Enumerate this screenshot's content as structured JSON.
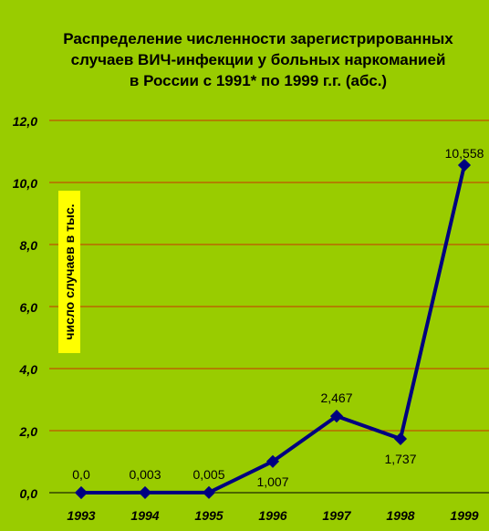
{
  "chart_data": {
    "type": "line",
    "title_lines": [
      "Распределение численности зарегистрированных",
      "случаев ВИЧ-инфекции у больных наркоманией",
      "в России с 1991* по 1999 г.г. (абс.)"
    ],
    "ylabel": "число случаев в тыс.",
    "categories": [
      "1993",
      "1994",
      "1995",
      "1996",
      "1997",
      "1998",
      "1999"
    ],
    "values": [
      0.0,
      0.003,
      0.005,
      1.007,
      2.467,
      1.737,
      10.558
    ],
    "data_labels": [
      "0,0",
      "0,003",
      "0,005",
      "1,007",
      "2,467",
      "1,737",
      "10,558"
    ],
    "ylim": [
      0,
      12
    ],
    "yticks": [
      "0,0",
      "2,0",
      "4,0",
      "6,0",
      "8,0",
      "10,0",
      "12,0"
    ],
    "grid": true,
    "colors": {
      "background": "#99cc00",
      "line": "#000080",
      "grid": "#cc3300",
      "ylabel_box": "#ffff00"
    }
  }
}
